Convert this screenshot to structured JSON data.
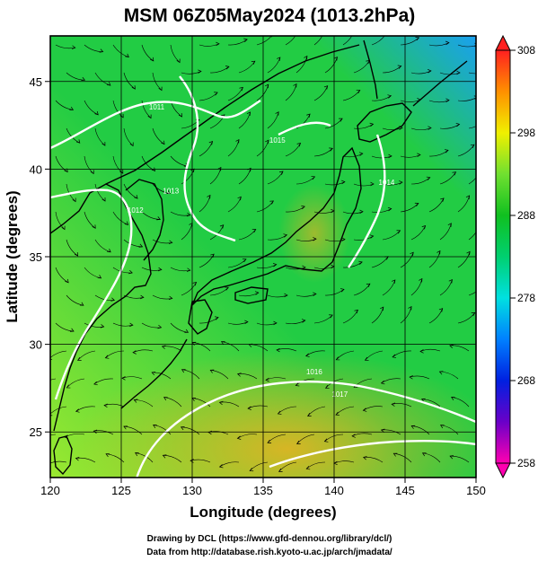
{
  "title": "MSM 06Z05May2024 (1013.2hPa)",
  "map": {
    "xlabel": "Longitude (degrees)",
    "ylabel": "Latitude  (degrees)",
    "lon_range": [
      120,
      150
    ],
    "lat_range": [
      22.4,
      47.6
    ],
    "x_ticks": [
      "120",
      "125",
      "130",
      "135",
      "140",
      "145",
      "150"
    ],
    "y_ticks": [
      "25",
      "30",
      "35",
      "40",
      "45"
    ],
    "field_colors": {
      "cool": "#1aa0f0",
      "mild": "#22cc44",
      "warm": "#9be830",
      "hot": "#f0b020"
    },
    "contour_color": "#ffffff",
    "coast_color": "#000000",
    "contours": [
      {
        "label": "1011",
        "lon": 127.5,
        "lat": 43.4
      },
      {
        "label": "1012",
        "lon": 126.0,
        "lat": 37.5
      },
      {
        "label": "1013",
        "lon": 128.5,
        "lat": 38.6
      },
      {
        "label": "1014",
        "lon": 143.7,
        "lat": 39.1
      },
      {
        "label": "1015",
        "lon": 136.0,
        "lat": 41.5
      },
      {
        "label": "1016",
        "lon": 138.6,
        "lat": 28.3
      },
      {
        "label": "1017",
        "lon": 140.4,
        "lat": 27.0
      }
    ]
  },
  "colorbar": {
    "ticks": [
      "308",
      "298",
      "288",
      "278",
      "268",
      "258"
    ],
    "values": [
      308,
      298,
      288,
      278,
      268,
      258
    ],
    "range": [
      258,
      308
    ],
    "stops": [
      {
        "v": 258,
        "c": "#ff00b0"
      },
      {
        "v": 263,
        "c": "#6a00c8"
      },
      {
        "v": 268,
        "c": "#0020e0"
      },
      {
        "v": 273,
        "c": "#0080ff"
      },
      {
        "v": 278,
        "c": "#00e0e0"
      },
      {
        "v": 283,
        "c": "#00d070"
      },
      {
        "v": 288,
        "c": "#10c020"
      },
      {
        "v": 293,
        "c": "#70e030"
      },
      {
        "v": 298,
        "c": "#f0f000"
      },
      {
        "v": 303,
        "c": "#ff9000"
      },
      {
        "v": 308,
        "c": "#ff2020"
      }
    ]
  },
  "credits": [
    "Drawing by DCL (https://www.gfd-dennou.org/library/dcl/)",
    "Data from http://database.rish.kyoto-u.ac.jp/arch/jmadata/"
  ]
}
